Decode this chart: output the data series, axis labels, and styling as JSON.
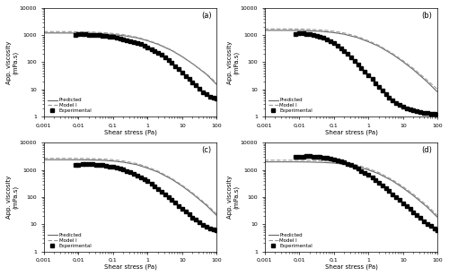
{
  "panels": [
    "a",
    "b",
    "c",
    "d"
  ],
  "xlim": [
    0.001,
    100
  ],
  "ylim": [
    1,
    10000
  ],
  "xlabel": "Shear stress (Pa)",
  "ylabel": "App. viscosity\n(mPa.s)",
  "legend_labels": [
    "Experimental",
    "Predicted",
    "Model I"
  ],
  "panel_a": {
    "exp_x": [
      0.008,
      0.01,
      0.013,
      0.016,
      0.02,
      0.025,
      0.032,
      0.04,
      0.05,
      0.063,
      0.08,
      0.1,
      0.13,
      0.16,
      0.2,
      0.25,
      0.32,
      0.4,
      0.5,
      0.63,
      0.8,
      1.0,
      1.3,
      1.6,
      2.0,
      2.5,
      3.2,
      4.0,
      5.0,
      6.3,
      8.0,
      10.0,
      13.0,
      16.0,
      20.0,
      25.0,
      32.0,
      40.0,
      50.0,
      63.0,
      80.0,
      100.0
    ],
    "exp_y": [
      1050,
      1080,
      1080,
      1070,
      1050,
      1030,
      1010,
      990,
      960,
      930,
      890,
      850,
      800,
      755,
      710,
      660,
      610,
      560,
      510,
      460,
      410,
      360,
      310,
      265,
      225,
      185,
      150,
      120,
      95,
      72,
      55,
      42,
      31,
      24,
      18,
      14,
      10.5,
      8,
      6.5,
      5.5,
      5,
      4.5
    ],
    "pred_x": [
      0.001,
      0.002,
      0.005,
      0.01,
      0.02,
      0.05,
      0.1,
      0.2,
      0.5,
      1.0,
      2.0,
      5.0,
      10.0,
      20.0,
      50.0,
      100.0
    ],
    "pred_y": [
      1200,
      1200,
      1195,
      1190,
      1170,
      1120,
      1050,
      960,
      790,
      620,
      460,
      270,
      160,
      88,
      36,
      15
    ],
    "model1_x": [
      0.001,
      0.002,
      0.005,
      0.01,
      0.02,
      0.05,
      0.1,
      0.2,
      0.5,
      1.0,
      2.0,
      5.0,
      10.0,
      20.0,
      50.0,
      100.0
    ],
    "model1_y": [
      1350,
      1350,
      1345,
      1335,
      1310,
      1240,
      1150,
      1040,
      840,
      650,
      480,
      280,
      165,
      90,
      38,
      17
    ]
  },
  "panel_b": {
    "exp_x": [
      0.008,
      0.01,
      0.013,
      0.016,
      0.02,
      0.025,
      0.032,
      0.04,
      0.05,
      0.063,
      0.08,
      0.1,
      0.13,
      0.16,
      0.2,
      0.25,
      0.32,
      0.4,
      0.5,
      0.63,
      0.8,
      1.0,
      1.3,
      1.6,
      2.0,
      2.5,
      3.2,
      4.0,
      5.0,
      6.3,
      8.0,
      10.0,
      13.0,
      16.0,
      20.0,
      25.0,
      32.0,
      40.0,
      50.0,
      63.0,
      80.0,
      100.0
    ],
    "exp_y": [
      1100,
      1150,
      1150,
      1120,
      1080,
      1030,
      960,
      890,
      800,
      710,
      610,
      510,
      415,
      335,
      265,
      205,
      155,
      115,
      85,
      62,
      45,
      33,
      24,
      17,
      12.5,
      9.2,
      6.7,
      5.1,
      4.0,
      3.2,
      2.7,
      2.3,
      2.0,
      1.8,
      1.7,
      1.6,
      1.5,
      1.4,
      1.35,
      1.3,
      1.25,
      1.2
    ],
    "pred_x": [
      0.001,
      0.002,
      0.005,
      0.01,
      0.02,
      0.05,
      0.1,
      0.2,
      0.5,
      1.0,
      2.0,
      5.0,
      10.0,
      20.0,
      50.0,
      100.0
    ],
    "pred_y": [
      1500,
      1500,
      1495,
      1480,
      1450,
      1360,
      1240,
      1080,
      800,
      570,
      390,
      195,
      105,
      53,
      19,
      8
    ],
    "model1_x": [
      0.001,
      0.002,
      0.005,
      0.01,
      0.02,
      0.05,
      0.1,
      0.2,
      0.5,
      1.0,
      2.0,
      5.0,
      10.0,
      20.0,
      50.0,
      100.0
    ],
    "model1_y": [
      1700,
      1700,
      1695,
      1680,
      1640,
      1530,
      1390,
      1200,
      880,
      620,
      420,
      210,
      115,
      59,
      22,
      10
    ]
  },
  "panel_c": {
    "exp_x": [
      0.008,
      0.01,
      0.013,
      0.016,
      0.02,
      0.025,
      0.032,
      0.04,
      0.05,
      0.063,
      0.08,
      0.1,
      0.13,
      0.16,
      0.2,
      0.25,
      0.32,
      0.4,
      0.5,
      0.63,
      0.8,
      1.0,
      1.3,
      1.6,
      2.0,
      2.5,
      3.2,
      4.0,
      5.0,
      6.3,
      8.0,
      10.0,
      13.0,
      16.0,
      20.0,
      25.0,
      32.0,
      40.0,
      50.0,
      63.0,
      80.0,
      100.0
    ],
    "exp_y": [
      1500,
      1600,
      1650,
      1670,
      1660,
      1640,
      1600,
      1560,
      1510,
      1450,
      1380,
      1300,
      1200,
      1110,
      1020,
      920,
      820,
      720,
      625,
      535,
      455,
      380,
      310,
      255,
      205,
      162,
      127,
      100,
      78,
      61,
      48,
      38,
      29,
      23,
      18,
      14.5,
      11.5,
      9.5,
      8,
      7,
      6.5,
      6
    ],
    "pred_x": [
      0.001,
      0.002,
      0.005,
      0.01,
      0.02,
      0.05,
      0.1,
      0.2,
      0.5,
      1.0,
      2.0,
      5.0,
      10.0,
      20.0,
      50.0,
      100.0
    ],
    "pred_y": [
      2400,
      2400,
      2395,
      2385,
      2360,
      2280,
      2150,
      1940,
      1560,
      1170,
      840,
      455,
      255,
      132,
      50,
      21
    ],
    "model1_x": [
      0.001,
      0.002,
      0.005,
      0.01,
      0.02,
      0.05,
      0.1,
      0.2,
      0.5,
      1.0,
      2.0,
      5.0,
      10.0,
      20.0,
      50.0,
      100.0
    ],
    "model1_y": [
      2700,
      2700,
      2695,
      2685,
      2655,
      2560,
      2400,
      2160,
      1720,
      1280,
      910,
      490,
      275,
      143,
      55,
      24
    ]
  },
  "panel_d": {
    "exp_x": [
      0.008,
      0.01,
      0.013,
      0.016,
      0.02,
      0.025,
      0.032,
      0.04,
      0.05,
      0.063,
      0.08,
      0.1,
      0.13,
      0.16,
      0.2,
      0.25,
      0.32,
      0.4,
      0.5,
      0.63,
      0.8,
      1.0,
      1.3,
      1.6,
      2.0,
      2.5,
      3.2,
      4.0,
      5.0,
      6.3,
      8.0,
      10.0,
      13.0,
      16.0,
      20.0,
      25.0,
      32.0,
      40.0,
      50.0,
      63.0,
      80.0,
      100.0
    ],
    "exp_y": [
      3000,
      3100,
      3150,
      3200,
      3200,
      3150,
      3100,
      3000,
      2900,
      2780,
      2630,
      2470,
      2280,
      2100,
      1900,
      1700,
      1490,
      1290,
      1100,
      930,
      780,
      650,
      530,
      430,
      345,
      275,
      215,
      168,
      130,
      100,
      78,
      60,
      46,
      36,
      28,
      22,
      17,
      13,
      10.5,
      8.5,
      7,
      5.8
    ],
    "pred_x": [
      0.001,
      0.002,
      0.005,
      0.01,
      0.02,
      0.05,
      0.1,
      0.2,
      0.5,
      1.0,
      2.0,
      5.0,
      10.0,
      20.0,
      50.0,
      100.0
    ],
    "pred_y": [
      2000,
      2000,
      1998,
      1990,
      1970,
      1900,
      1800,
      1640,
      1330,
      1010,
      730,
      395,
      220,
      114,
      43,
      18
    ],
    "model1_x": [
      0.001,
      0.002,
      0.005,
      0.01,
      0.02,
      0.05,
      0.1,
      0.2,
      0.5,
      1.0,
      2.0,
      5.0,
      10.0,
      20.0,
      50.0,
      100.0
    ],
    "model1_y": [
      2300,
      2300,
      2298,
      2290,
      2265,
      2180,
      2060,
      1870,
      1500,
      1130,
      810,
      435,
      245,
      128,
      49,
      21
    ]
  },
  "exp_color": "#000000",
  "pred_color": "#666666",
  "model1_color": "#999999",
  "background_color": "#ffffff",
  "tick_x": [
    0.001,
    0.01,
    0.1,
    1,
    10,
    100
  ],
  "tick_x_labels": [
    "0,001",
    "0,01",
    "0,1",
    "1",
    "10",
    "100"
  ],
  "tick_y": [
    1,
    10,
    100,
    1000,
    10000
  ]
}
